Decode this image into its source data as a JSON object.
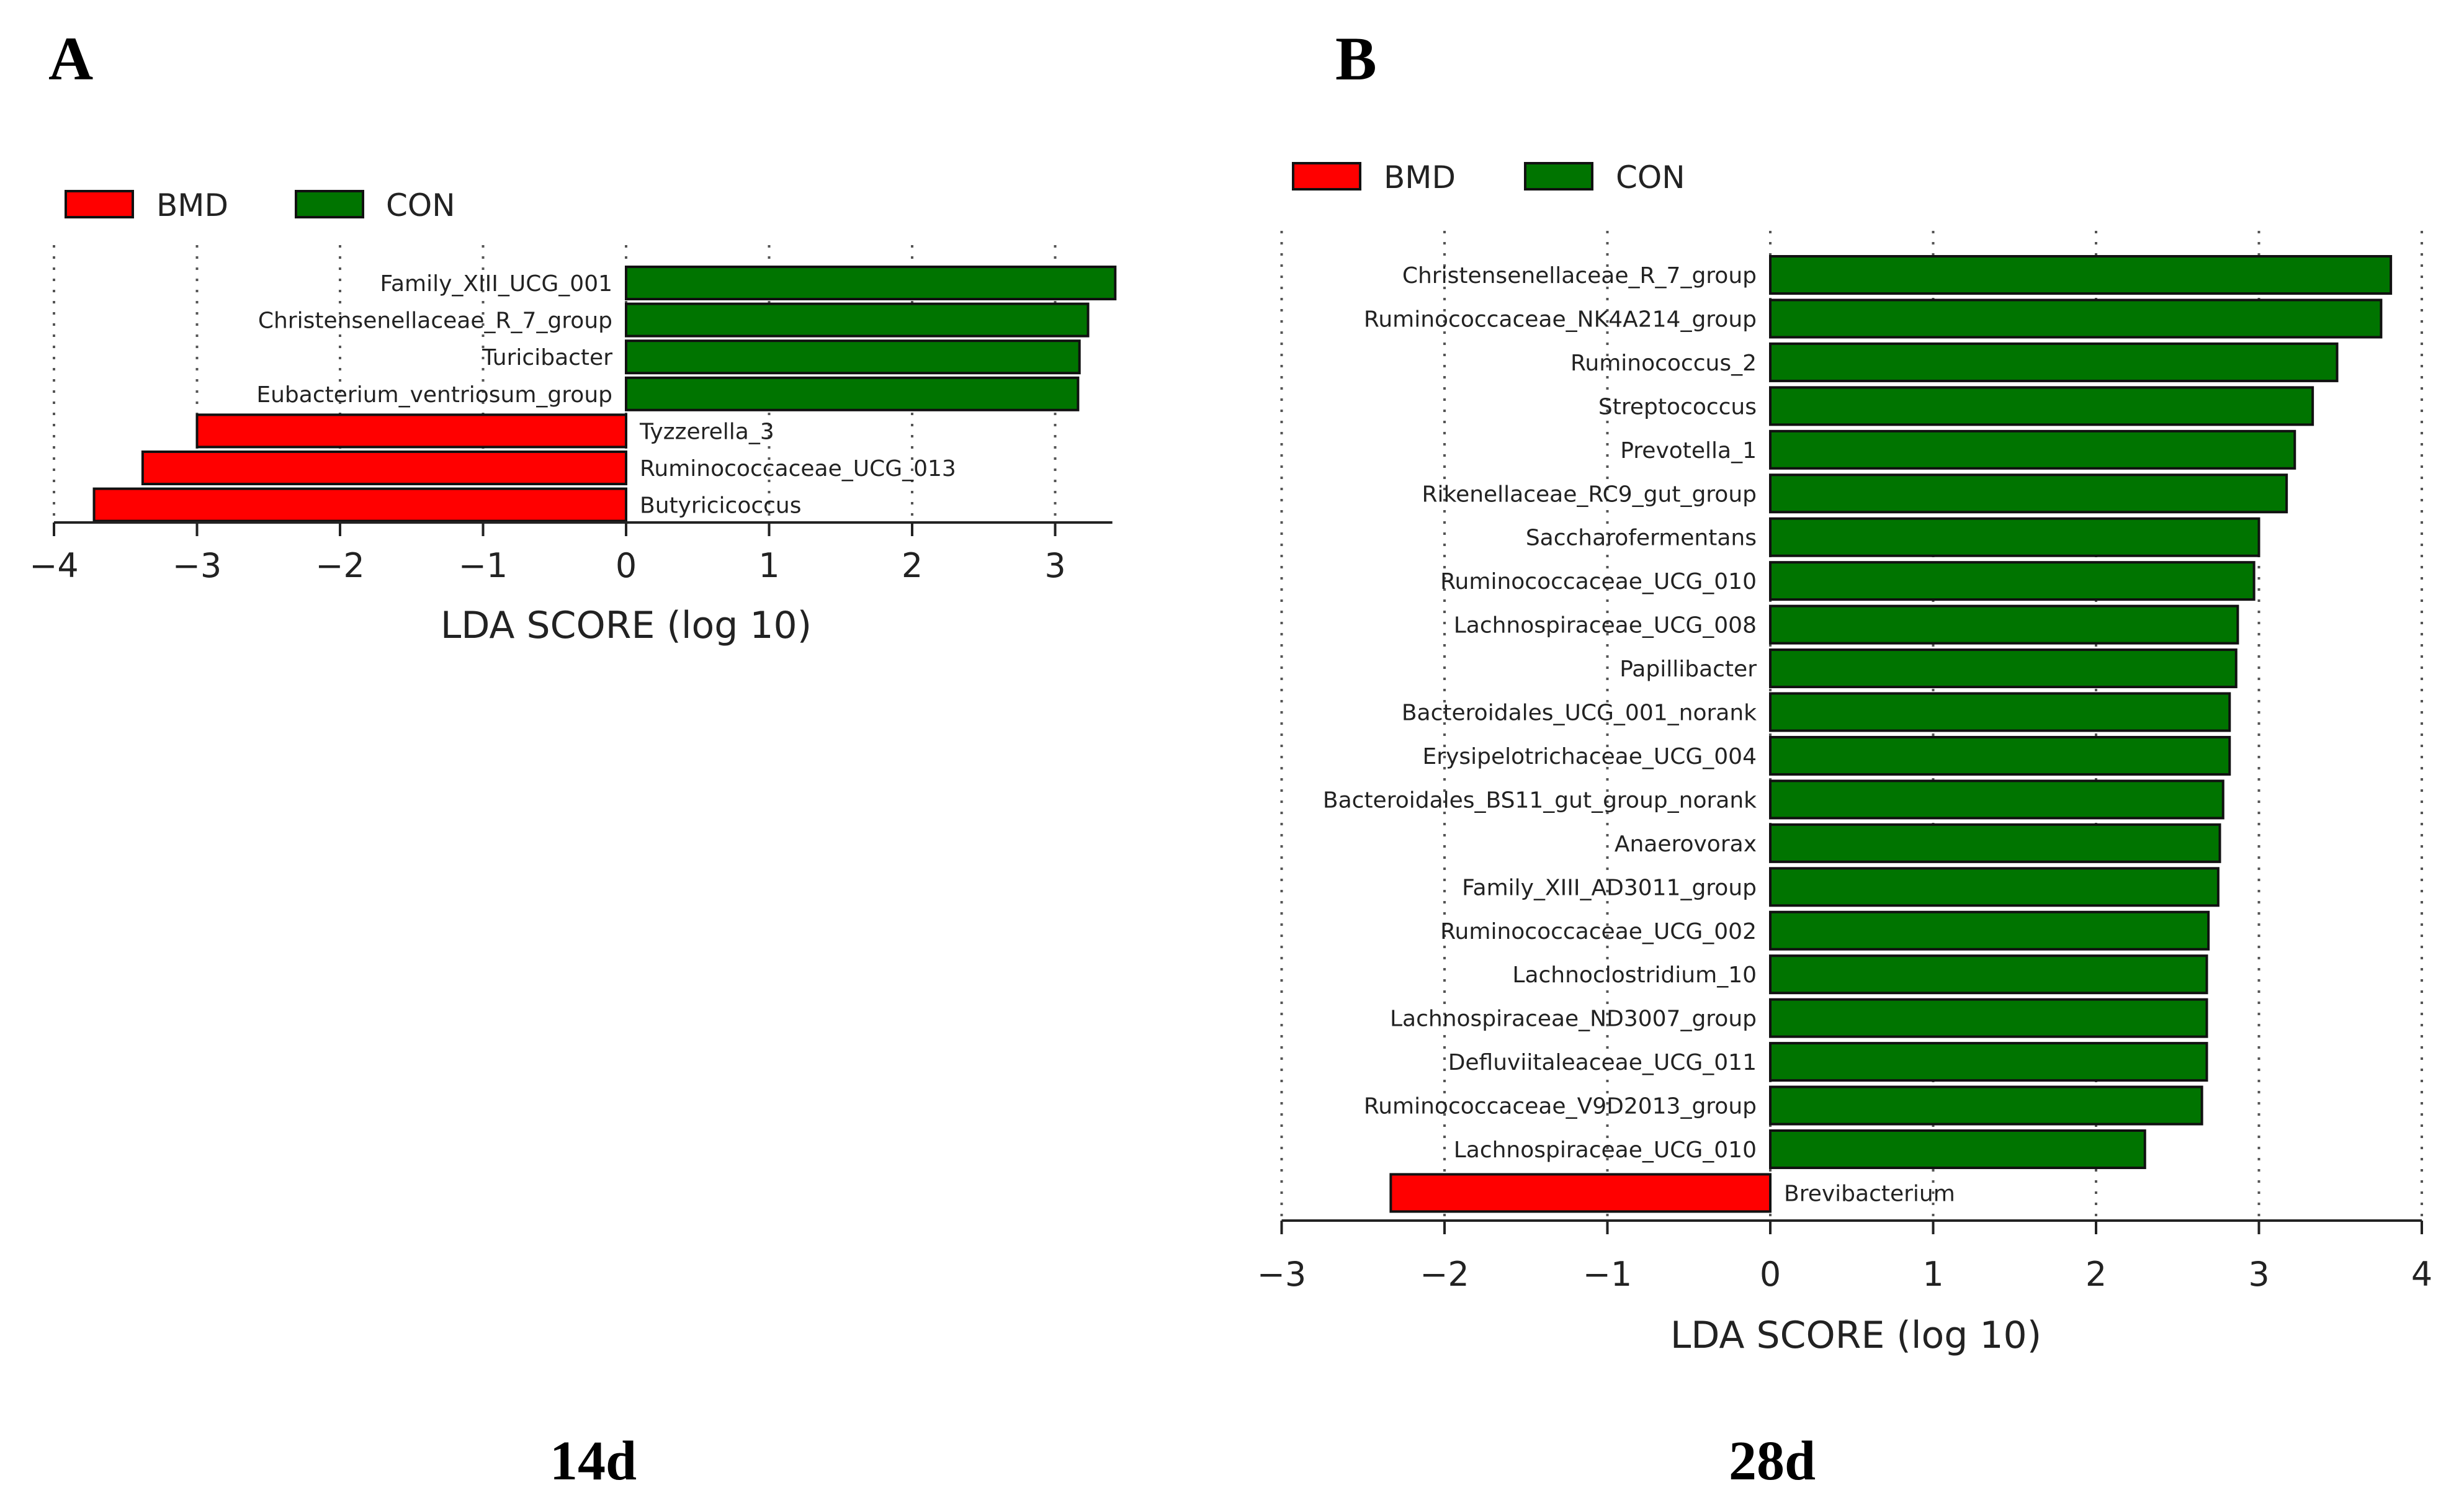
{
  "colors": {
    "bmd": "#ff0000",
    "con": "#007400"
  },
  "legend": [
    {
      "label": "BMD",
      "key": "bmd"
    },
    {
      "label": "CON",
      "key": "con"
    }
  ],
  "chart_data": [
    {
      "panel": "A",
      "caption": "14d",
      "type": "bar",
      "orientation": "horizontal",
      "xlabel": "LDA SCORE (log 10)",
      "xlim": [
        -4,
        3.4
      ],
      "xticks": [
        -4,
        -3,
        -2,
        -1,
        0,
        1,
        2,
        3
      ],
      "xtick_labels": [
        "−4",
        "−3",
        "−2",
        "−1",
        "0",
        "1",
        "2",
        "3"
      ],
      "grid": true,
      "legend_position": "top-left",
      "series": [
        {
          "name": "Family_XIII_UCG_001",
          "value": 3.42,
          "group": "con"
        },
        {
          "name": "Christensenellaceae_R_7_group",
          "value": 3.23,
          "group": "con"
        },
        {
          "name": "Turicibacter",
          "value": 3.17,
          "group": "con"
        },
        {
          "name": "Eubacterium_ventriosum_group",
          "value": 3.16,
          "group": "con"
        },
        {
          "name": "Tyzzerella_3",
          "value": -3.0,
          "group": "bmd"
        },
        {
          "name": "Ruminococcaceae_UCG_013",
          "value": -3.38,
          "group": "bmd"
        },
        {
          "name": "Butyricicoccus",
          "value": -3.72,
          "group": "bmd"
        }
      ]
    },
    {
      "panel": "B",
      "caption": "28d",
      "type": "bar",
      "orientation": "horizontal",
      "xlabel": "LDA SCORE (log 10)",
      "xlim": [
        -3,
        4
      ],
      "xticks": [
        -3,
        -2,
        -1,
        0,
        1,
        2,
        3,
        4
      ],
      "xtick_labels": [
        "−3",
        "−2",
        "−1",
        "0",
        "1",
        "2",
        "3",
        "4"
      ],
      "grid": true,
      "legend_position": "top-left",
      "series": [
        {
          "name": "Christensenellaceae_R_7_group",
          "value": 3.81,
          "group": "con"
        },
        {
          "name": "Ruminococcaceae_NK4A214_group",
          "value": 3.75,
          "group": "con"
        },
        {
          "name": "Ruminococcus_2",
          "value": 3.48,
          "group": "con"
        },
        {
          "name": "Streptococcus",
          "value": 3.33,
          "group": "con"
        },
        {
          "name": "Prevotella_1",
          "value": 3.22,
          "group": "con"
        },
        {
          "name": "Rikenellaceae_RC9_gut_group",
          "value": 3.17,
          "group": "con"
        },
        {
          "name": "Saccharofermentans",
          "value": 3.0,
          "group": "con"
        },
        {
          "name": "Ruminococcaceae_UCG_010",
          "value": 2.97,
          "group": "con"
        },
        {
          "name": "Lachnospiraceae_UCG_008",
          "value": 2.87,
          "group": "con"
        },
        {
          "name": "Papillibacter",
          "value": 2.86,
          "group": "con"
        },
        {
          "name": "Bacteroidales_UCG_001_norank",
          "value": 2.82,
          "group": "con"
        },
        {
          "name": "Erysipelotrichaceae_UCG_004",
          "value": 2.82,
          "group": "con"
        },
        {
          "name": "Bacteroidales_BS11_gut_group_norank",
          "value": 2.78,
          "group": "con"
        },
        {
          "name": "Anaerovorax",
          "value": 2.76,
          "group": "con"
        },
        {
          "name": "Family_XIII_AD3011_group",
          "value": 2.75,
          "group": "con"
        },
        {
          "name": "Ruminococcaceae_UCG_002",
          "value": 2.69,
          "group": "con"
        },
        {
          "name": "Lachnoclostridium_10",
          "value": 2.68,
          "group": "con"
        },
        {
          "name": "Lachnospiraceae_ND3007_group",
          "value": 2.68,
          "group": "con"
        },
        {
          "name": "Defluviitaleaceae_UCG_011",
          "value": 2.68,
          "group": "con"
        },
        {
          "name": "Ruminococcaceae_V9D2013_group",
          "value": 2.65,
          "group": "con"
        },
        {
          "name": "Lachnospiraceae_UCG_010",
          "value": 2.3,
          "group": "con"
        },
        {
          "name": "Brevibacterium",
          "value": -2.33,
          "group": "bmd"
        }
      ]
    }
  ]
}
